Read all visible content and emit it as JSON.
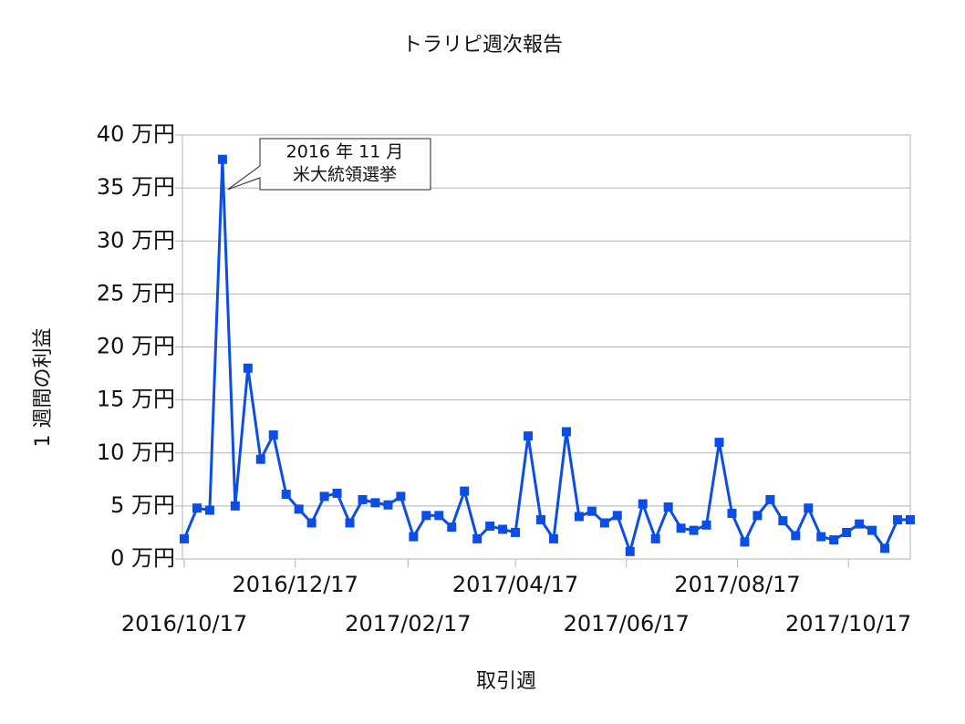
{
  "chart_data": {
    "type": "line",
    "title": "トラリピ週次報告",
    "x_label": "取引週",
    "y_label": "1 週間の利益",
    "x": [
      "2016/10/17",
      "2016/10/24",
      "2016/10/31",
      "2016/11/07",
      "2016/11/14",
      "2016/11/21",
      "2016/11/28",
      "2016/12/05",
      "2016/12/12",
      "2016/12/19",
      "2016/12/26",
      "2017/01/02",
      "2017/01/09",
      "2017/01/16",
      "2017/01/23",
      "2017/01/30",
      "2017/02/06",
      "2017/02/13",
      "2017/02/20",
      "2017/02/27",
      "2017/03/06",
      "2017/03/13",
      "2017/03/20",
      "2017/03/27",
      "2017/04/03",
      "2017/04/10",
      "2017/04/17",
      "2017/04/24",
      "2017/05/01",
      "2017/05/08",
      "2017/05/15",
      "2017/05/22",
      "2017/05/29",
      "2017/06/05",
      "2017/06/12",
      "2017/06/19",
      "2017/06/26",
      "2017/07/03",
      "2017/07/10",
      "2017/07/17",
      "2017/07/24",
      "2017/07/31",
      "2017/08/07",
      "2017/08/14",
      "2017/08/21",
      "2017/08/28",
      "2017/09/04",
      "2017/09/11",
      "2017/09/18",
      "2017/09/25",
      "2017/10/02",
      "2017/10/09",
      "2017/10/16",
      "2017/10/23",
      "2017/10/30",
      "2017/11/06",
      "2017/11/13",
      "2017/11/20"
    ],
    "series": [
      {
        "name": "利益",
        "color": "#0a4ee6",
        "values": [
          1.9,
          4.8,
          4.6,
          37.7,
          5.0,
          18.0,
          9.4,
          11.7,
          6.1,
          4.7,
          3.4,
          5.9,
          6.2,
          3.4,
          5.6,
          5.3,
          5.1,
          5.9,
          2.1,
          4.1,
          4.1,
          3.0,
          6.4,
          1.9,
          3.1,
          2.8,
          2.5,
          11.6,
          3.7,
          1.9,
          12.0,
          4.0,
          4.5,
          3.4,
          4.1,
          0.7,
          5.2,
          1.9,
          4.9,
          2.9,
          2.7,
          3.2,
          11.0,
          4.3,
          1.6,
          4.1,
          5.6,
          3.6,
          2.2,
          4.8,
          2.1,
          1.8,
          2.5,
          3.3,
          2.7,
          1.0,
          3.7,
          3.7
        ]
      }
    ],
    "xlim": [
      "2016/10/16",
      "2017/11/20"
    ],
    "xticks": [
      "2016/10/17",
      "2016/12/17",
      "2017/02/17",
      "2017/04/17",
      "2017/06/17",
      "2017/08/17",
      "2017/10/17"
    ],
    "ylim": [
      0,
      40
    ],
    "yticks": [
      {
        "value": 0,
        "label": "0 万円"
      },
      {
        "value": 5,
        "label": "5 万円"
      },
      {
        "value": 10,
        "label": "10 万円"
      },
      {
        "value": 15,
        "label": "15 万円"
      },
      {
        "value": 20,
        "label": "20 万円"
      },
      {
        "value": 25,
        "label": "25 万円"
      },
      {
        "value": 30,
        "label": "30 万円"
      },
      {
        "value": 35,
        "label": "35 万円"
      },
      {
        "value": 40,
        "label": "40 万円"
      }
    ],
    "grid": true,
    "annotation": [
      "2016 年 11 月",
      "米大統領選挙"
    ]
  }
}
